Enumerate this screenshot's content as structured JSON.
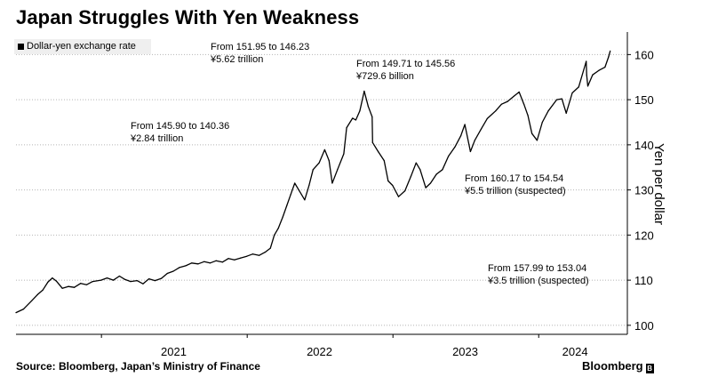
{
  "title": "Japan Struggles With Yen Weakness",
  "source": "Source: Bloomberg, Japan’s Ministry of Finance",
  "brand": "Bloomberg",
  "brand_icon": "B",
  "chart_data": {
    "type": "line",
    "series": [
      {
        "name": "Dollar-yen exchange rate",
        "color": "#000000",
        "points": [
          [
            "2020-06-01",
            102.8
          ],
          [
            "2020-06-20",
            103.6
          ],
          [
            "2020-07-10",
            105.4
          ],
          [
            "2020-07-25",
            106.8
          ],
          [
            "2020-08-07",
            107.8
          ],
          [
            "2020-08-20",
            109.6
          ],
          [
            "2020-08-31",
            110.5
          ],
          [
            "2020-09-10",
            109.8
          ],
          [
            "2020-09-25",
            108.2
          ],
          [
            "2020-10-10",
            108.6
          ],
          [
            "2020-10-25",
            108.4
          ],
          [
            "2020-11-10",
            109.3
          ],
          [
            "2020-11-25",
            109.0
          ],
          [
            "2020-12-10",
            109.7
          ],
          [
            "2020-12-31",
            110.0
          ],
          [
            "2021-01-15",
            110.5
          ],
          [
            "2021-01-31",
            110.0
          ],
          [
            "2021-02-15",
            110.9
          ],
          [
            "2021-02-28",
            110.2
          ],
          [
            "2021-03-15",
            109.7
          ],
          [
            "2021-03-31",
            109.9
          ],
          [
            "2021-04-15",
            109.2
          ],
          [
            "2021-04-30",
            110.3
          ],
          [
            "2021-05-15",
            109.9
          ],
          [
            "2021-05-31",
            110.4
          ],
          [
            "2021-06-15",
            111.5
          ],
          [
            "2021-06-30",
            112.0
          ],
          [
            "2021-07-15",
            112.8
          ],
          [
            "2021-07-31",
            113.2
          ],
          [
            "2021-08-15",
            113.8
          ],
          [
            "2021-08-31",
            113.6
          ],
          [
            "2021-09-15",
            114.1
          ],
          [
            "2021-09-30",
            113.8
          ],
          [
            "2021-10-15",
            114.3
          ],
          [
            "2021-10-31",
            114.0
          ],
          [
            "2021-11-15",
            114.8
          ],
          [
            "2021-11-30",
            114.5
          ],
          [
            "2021-12-15",
            114.9
          ],
          [
            "2021-12-31",
            115.3
          ],
          [
            "2022-01-15",
            115.8
          ],
          [
            "2022-01-31",
            115.5
          ],
          [
            "2022-02-15",
            116.2
          ],
          [
            "2022-02-28",
            117.1
          ],
          [
            "2022-03-10",
            120.0
          ],
          [
            "2022-03-20",
            121.5
          ],
          [
            "2022-03-31",
            124.0
          ],
          [
            "2022-04-10",
            126.5
          ],
          [
            "2022-04-20",
            129.0
          ],
          [
            "2022-04-30",
            131.5
          ],
          [
            "2022-05-10",
            130.0
          ],
          [
            "2022-05-25",
            127.8
          ],
          [
            "2022-06-05",
            131.0
          ],
          [
            "2022-06-15",
            134.5
          ],
          [
            "2022-06-30",
            136.0
          ],
          [
            "2022-07-14",
            138.9
          ],
          [
            "2022-07-25",
            136.5
          ],
          [
            "2022-08-02",
            131.5
          ],
          [
            "2022-08-15",
            134.5
          ],
          [
            "2022-08-31",
            138.0
          ],
          [
            "2022-09-07",
            143.8
          ],
          [
            "2022-09-22",
            145.9
          ],
          [
            "2022-09-30",
            145.5
          ],
          [
            "2022-10-10",
            147.5
          ],
          [
            "2022-10-21",
            151.9
          ],
          [
            "2022-10-31",
            148.5
          ],
          [
            "2022-11-10",
            146.2
          ],
          [
            "2022-11-11",
            140.5
          ],
          [
            "2022-11-25",
            138.5
          ],
          [
            "2022-12-10",
            136.5
          ],
          [
            "2022-12-20",
            132.0
          ],
          [
            "2022-12-31",
            131.0
          ],
          [
            "2023-01-15",
            128.5
          ],
          [
            "2023-01-31",
            129.8
          ],
          [
            "2023-02-15",
            133.0
          ],
          [
            "2023-02-28",
            136.0
          ],
          [
            "2023-03-10",
            134.5
          ],
          [
            "2023-03-24",
            130.5
          ],
          [
            "2023-04-05",
            131.5
          ],
          [
            "2023-04-20",
            133.5
          ],
          [
            "2023-05-05",
            134.5
          ],
          [
            "2023-05-20",
            137.5
          ],
          [
            "2023-06-05",
            139.5
          ],
          [
            "2023-06-20",
            142.0
          ],
          [
            "2023-06-30",
            144.5
          ],
          [
            "2023-07-14",
            138.5
          ],
          [
            "2023-07-25",
            141.0
          ],
          [
            "2023-08-10",
            143.5
          ],
          [
            "2023-08-25",
            145.8
          ],
          [
            "2023-09-15",
            147.5
          ],
          [
            "2023-09-30",
            149.0
          ],
          [
            "2023-10-15",
            149.6
          ],
          [
            "2023-10-31",
            150.8
          ],
          [
            "2023-11-13",
            151.7
          ],
          [
            "2023-11-25",
            149.0
          ],
          [
            "2023-12-05",
            146.5
          ],
          [
            "2023-12-15",
            142.5
          ],
          [
            "2023-12-28",
            141.0
          ],
          [
            "2024-01-10",
            145.0
          ],
          [
            "2024-01-25",
            147.5
          ],
          [
            "2024-02-15",
            150.0
          ],
          [
            "2024-02-28",
            150.2
          ],
          [
            "2024-03-10",
            147.0
          ],
          [
            "2024-03-25",
            151.5
          ],
          [
            "2024-04-10",
            152.8
          ],
          [
            "2024-04-29",
            158.5
          ],
          [
            "2024-04-30",
            155.5
          ],
          [
            "2024-05-03",
            153.0
          ],
          [
            "2024-05-15",
            155.5
          ],
          [
            "2024-05-31",
            156.5
          ],
          [
            "2024-06-15",
            157.2
          ],
          [
            "2024-06-24",
            159.5
          ],
          [
            "2024-06-28",
            160.8
          ]
        ]
      }
    ],
    "x_axis": {
      "type": "date",
      "range": [
        "2020-06-01",
        "2024-08-10"
      ],
      "tick_labels": [
        "2021",
        "2022",
        "2023",
        "2024"
      ],
      "tick_dates": [
        "2021-01-01",
        "2022-01-01",
        "2023-01-01",
        "2024-01-01"
      ]
    },
    "y_axis": {
      "label": "Yen per dollar",
      "position": "right",
      "range": [
        98,
        165
      ],
      "ticks": [
        100,
        110,
        120,
        130,
        140,
        150,
        160
      ]
    },
    "grid": "horizontal dotted",
    "legend": {
      "position": "top-left",
      "entry": "Dollar-yen exchange rate"
    },
    "annotations": [
      {
        "line1": "From 145.90 to 140.36",
        "line2": "¥2.84 trillion"
      },
      {
        "line1": "From 151.95 to 146.23",
        "line2": "¥5.62 trillion"
      },
      {
        "line1": "From 149.71 to 145.56",
        "line2": "¥729.6 billion"
      },
      {
        "line1": "From 160.17 to 154.54",
        "line2": "¥5.5 trillion (suspected)"
      },
      {
        "line1": "From 157.99 to 153.04",
        "line2": "¥3.5 trillion (suspected)"
      }
    ]
  }
}
